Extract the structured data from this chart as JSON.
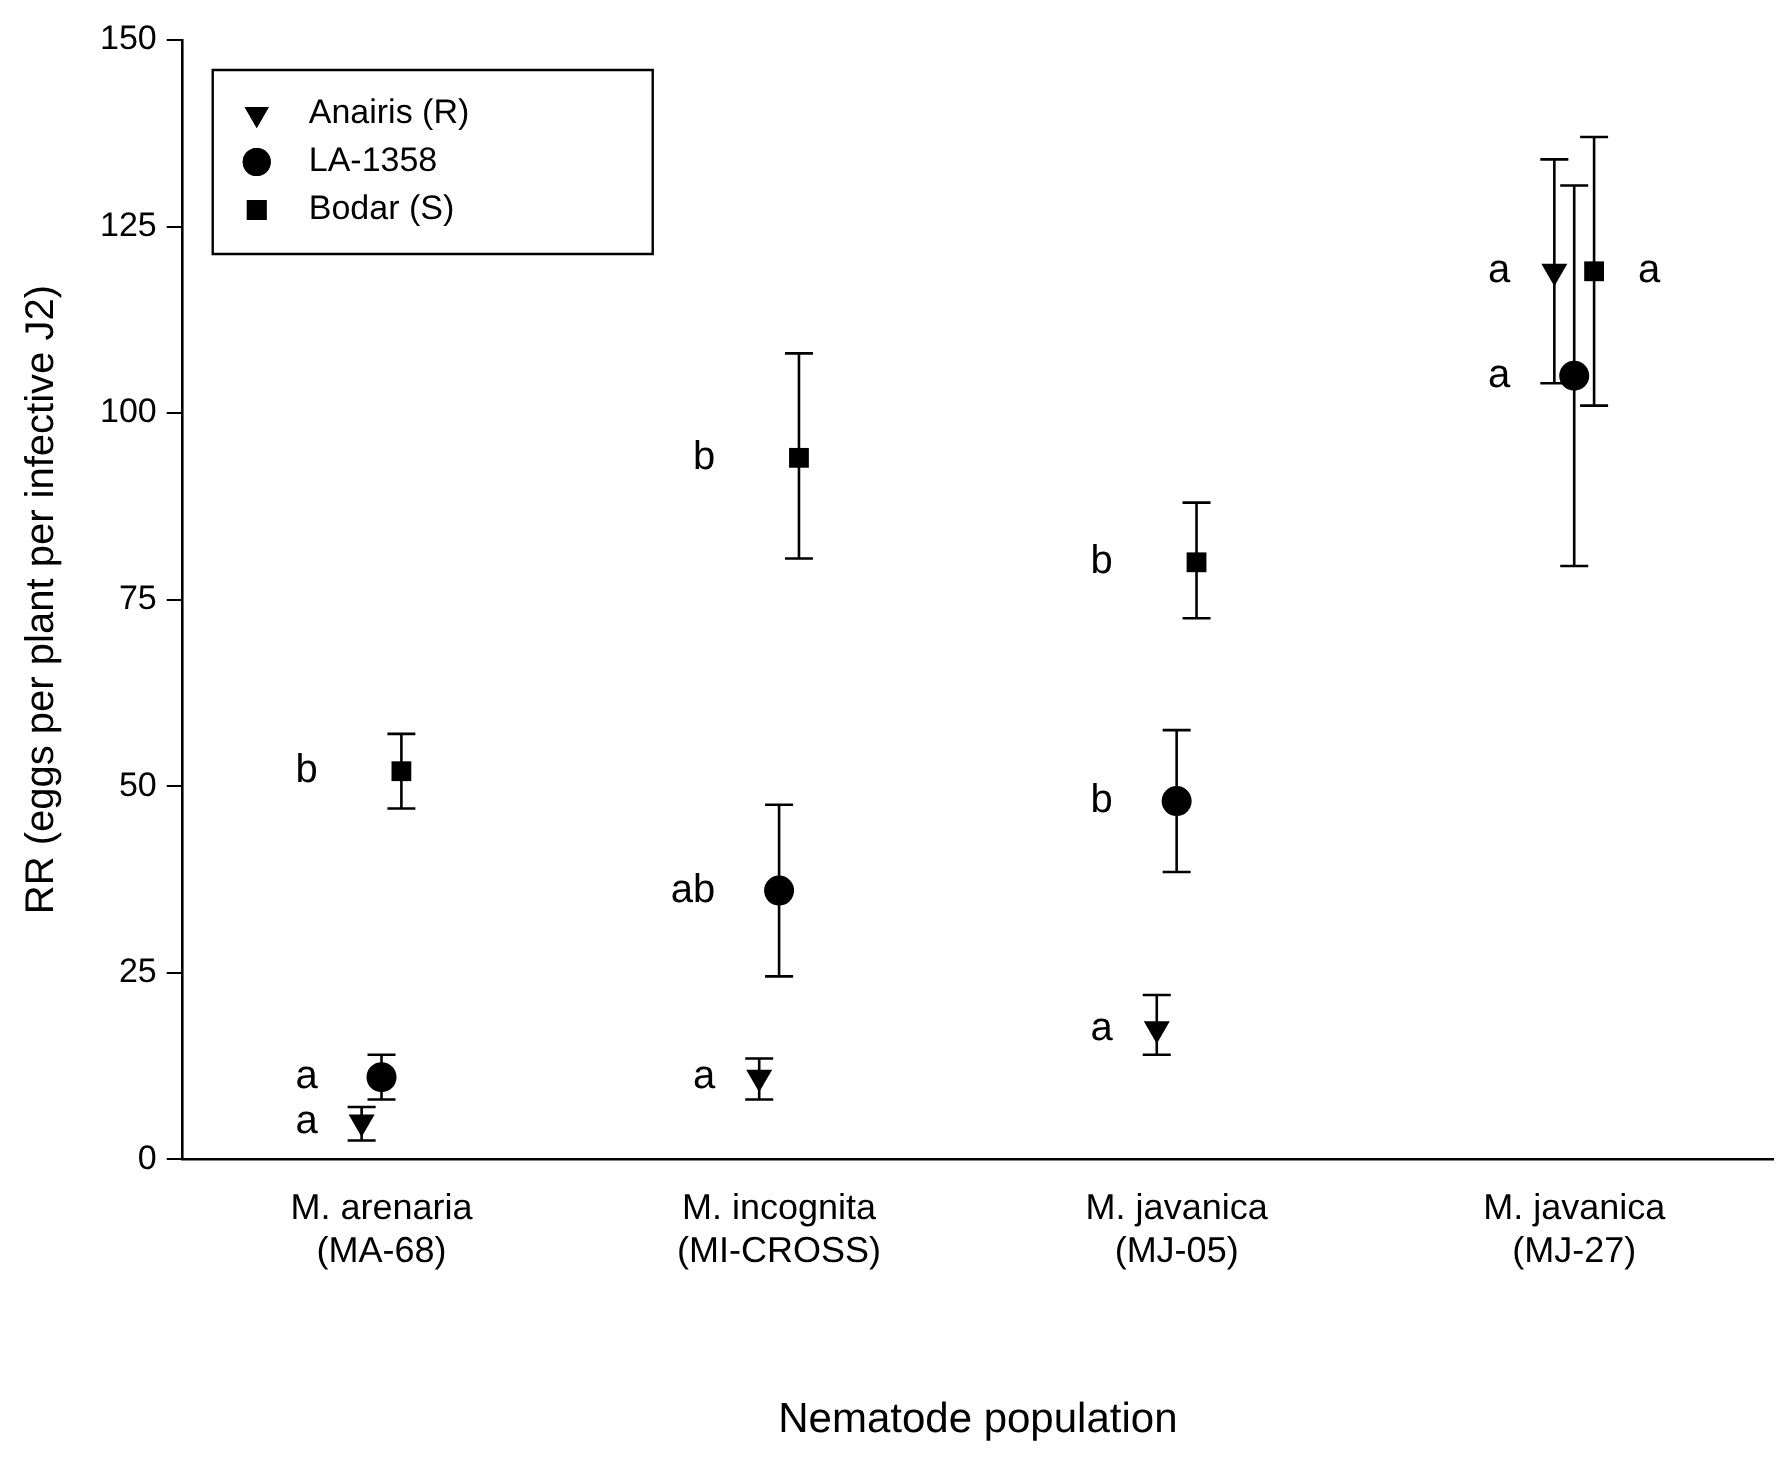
{
  "chart_data": {
    "type": "scatter",
    "xlabel": "Nematode population",
    "ylabel": "RR (eggs per plant per infective J2)",
    "categories": [
      "M. arenaria\n(MA-68)",
      "M. incognita\n(MI-CROSS)",
      "M. javanica\n(MJ-05)",
      "M. javanica\n(MJ-27)"
    ],
    "series": [
      {
        "name": "Anairis (R)",
        "color": "#000000",
        "marker": "triangle",
        "values": [
          5,
          11,
          17.5,
          119
        ],
        "errors": [
          [
            2.5,
            7
          ],
          [
            8,
            13.5
          ],
          [
            14,
            22
          ],
          [
            104,
            134
          ]
        ]
      },
      {
        "name": "LA-1358",
        "color": "#000000",
        "marker": "circle",
        "values": [
          11,
          36,
          48,
          105
        ],
        "errors": [
          [
            8,
            14
          ],
          [
            24.5,
            47.5
          ],
          [
            38.5,
            57.5
          ],
          [
            79.5,
            130.5
          ]
        ]
      },
      {
        "name": "Bodar (S)",
        "color": "#000000",
        "marker": "square",
        "values": [
          52,
          94,
          80,
          119
        ],
        "errors": [
          [
            47,
            57
          ],
          [
            80.5,
            108
          ],
          [
            72.5,
            88
          ],
          [
            101,
            137
          ]
        ]
      }
    ],
    "ylim": [
      0,
      150
    ],
    "yticks": [
      0,
      25,
      50,
      75,
      100,
      125,
      150
    ],
    "grid": false,
    "legend": "top left",
    "annotations": [
      {
        "text": "a",
        "x": "M. arenaria\n(MA-68)",
        "y": 5
      },
      {
        "text": "a",
        "x": "M. arenaria\n(MA-68)",
        "y": 11
      },
      {
        "text": "b",
        "x": "M. arenaria\n(MA-68)",
        "y": 52
      },
      {
        "text": "a",
        "x": "M. incognita\n(MI-CROSS)",
        "y": 11
      },
      {
        "text": "ab",
        "x": "M. incognita\n(MI-CROSS)",
        "y": 36
      },
      {
        "text": "b",
        "x": "M. incognita\n(MI-CROSS)",
        "y": 94
      },
      {
        "text": "a",
        "x": "M. javanica\n(MJ-05)",
        "y": 17.5
      },
      {
        "text": "b",
        "x": "M. javanica\n(MJ-05)",
        "y": 48
      },
      {
        "text": "b",
        "x": "M. javanica\n(MJ-05)",
        "y": 80
      },
      {
        "text": "a",
        "x": "M. javanica\n(MJ-27)",
        "y": 119
      },
      {
        "text": "a",
        "x": "M. javanica\n(MJ-27)",
        "y": 105
      },
      {
        "text": "a",
        "x": "M. javanica\n(MJ-27)",
        "y": 119
      }
    ]
  }
}
